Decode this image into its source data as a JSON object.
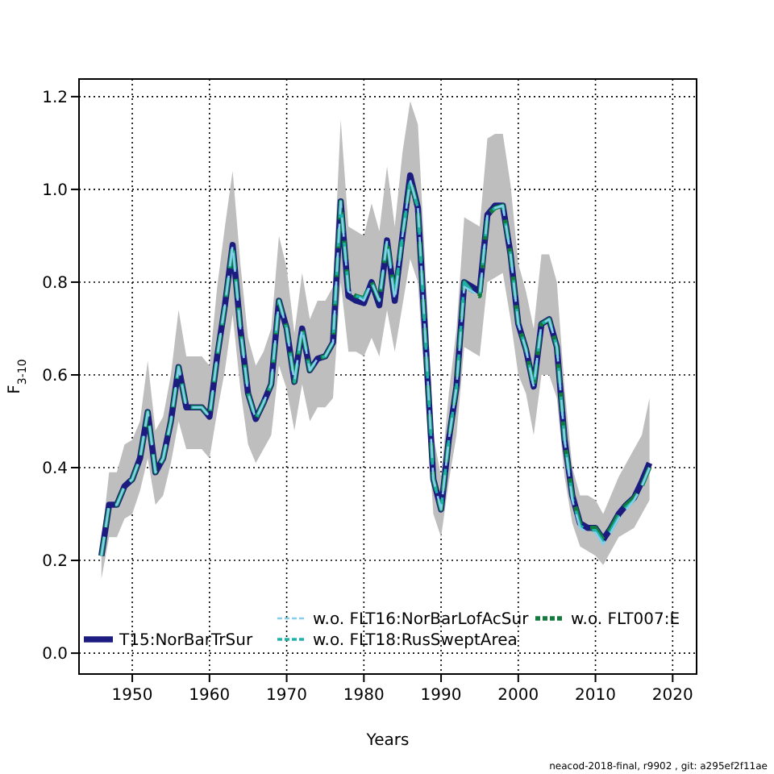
{
  "chart_data": {
    "type": "line",
    "xlabel": "Years",
    "ylabel": "F$_{3-10}$",
    "annotations": [
      "neacod-2018-final, r9902 , git: a295ef2f11ae"
    ],
    "x": [
      1946,
      1947,
      1948,
      1949,
      1950,
      1951,
      1952,
      1953,
      1954,
      1955,
      1956,
      1957,
      1958,
      1959,
      1960,
      1961,
      1962,
      1963,
      1964,
      1965,
      1966,
      1967,
      1968,
      1969,
      1970,
      1971,
      1972,
      1973,
      1974,
      1975,
      1976,
      1977,
      1978,
      1979,
      1980,
      1981,
      1982,
      1983,
      1984,
      1985,
      1986,
      1987,
      1988,
      1989,
      1990,
      1991,
      1992,
      1993,
      1994,
      1995,
      1996,
      1997,
      1998,
      1999,
      2000,
      2001,
      2002,
      2003,
      2004,
      2005,
      2006,
      2007,
      2008,
      2009,
      2010,
      2011,
      2012,
      2013,
      2014,
      2015,
      2016,
      2017
    ],
    "series": [
      {
        "name": "T15:NorBarTrSur",
        "color": "#1c1c80",
        "line_style": "solid",
        "values": [
          0.21,
          0.32,
          0.32,
          0.36,
          0.375,
          0.42,
          0.52,
          0.39,
          0.42,
          0.5,
          0.617,
          0.53,
          0.53,
          0.53,
          0.51,
          0.64,
          0.75,
          0.88,
          0.7,
          0.56,
          0.505,
          0.54,
          0.58,
          0.76,
          0.7,
          0.585,
          0.7,
          0.61,
          0.635,
          0.64,
          0.67,
          0.974,
          0.77,
          0.76,
          0.755,
          0.8,
          0.75,
          0.89,
          0.76,
          0.9,
          1.03,
          0.96,
          0.67,
          0.375,
          0.31,
          0.46,
          0.575,
          0.8,
          0.79,
          0.78,
          0.945,
          0.965,
          0.965,
          0.86,
          0.71,
          0.655,
          0.575,
          0.71,
          0.72,
          0.66,
          0.46,
          0.34,
          0.28,
          0.27,
          0.27,
          0.245,
          0.27,
          0.3,
          0.32,
          0.335,
          0.37,
          0.41
        ],
        "lower": [
          0.16,
          0.25,
          0.25,
          0.29,
          0.3,
          0.35,
          0.42,
          0.32,
          0.34,
          0.41,
          0.5,
          0.44,
          0.44,
          0.44,
          0.42,
          0.52,
          0.61,
          0.73,
          0.57,
          0.45,
          0.41,
          0.44,
          0.47,
          0.62,
          0.57,
          0.48,
          0.58,
          0.5,
          0.53,
          0.53,
          0.55,
          0.8,
          0.65,
          0.65,
          0.64,
          0.68,
          0.64,
          0.74,
          0.65,
          0.75,
          0.85,
          0.8,
          0.55,
          0.3,
          0.25,
          0.37,
          0.47,
          0.66,
          0.65,
          0.64,
          0.8,
          0.81,
          0.82,
          0.72,
          0.6,
          0.56,
          0.47,
          0.6,
          0.6,
          0.55,
          0.38,
          0.28,
          0.23,
          0.22,
          0.21,
          0.19,
          0.22,
          0.25,
          0.26,
          0.27,
          0.3,
          0.33
        ],
        "upper": [
          0.24,
          0.39,
          0.39,
          0.45,
          0.46,
          0.5,
          0.63,
          0.48,
          0.51,
          0.6,
          0.74,
          0.64,
          0.64,
          0.64,
          0.62,
          0.79,
          0.92,
          1.04,
          0.84,
          0.68,
          0.62,
          0.65,
          0.7,
          0.9,
          0.83,
          0.69,
          0.82,
          0.72,
          0.76,
          0.76,
          0.79,
          1.15,
          0.92,
          0.91,
          0.9,
          0.97,
          0.91,
          1.05,
          0.92,
          1.08,
          1.19,
          1.14,
          0.82,
          0.47,
          0.38,
          0.56,
          0.7,
          0.94,
          0.93,
          0.92,
          1.11,
          1.12,
          1.12,
          1.01,
          0.84,
          0.78,
          0.7,
          0.86,
          0.86,
          0.8,
          0.57,
          0.4,
          0.34,
          0.34,
          0.33,
          0.3,
          0.34,
          0.38,
          0.41,
          0.44,
          0.47,
          0.55
        ]
      },
      {
        "name": "w.o. FLT16:NorBarLofAcSur",
        "color": "#87ceeb",
        "line_style": "dashed",
        "values": [
          0.21,
          0.32,
          0.32,
          0.36,
          0.375,
          0.42,
          0.52,
          0.39,
          0.42,
          0.5,
          0.617,
          0.53,
          0.53,
          0.53,
          0.51,
          0.64,
          0.75,
          0.88,
          0.7,
          0.56,
          0.505,
          0.54,
          0.58,
          0.76,
          0.7,
          0.585,
          0.7,
          0.61,
          0.635,
          0.64,
          0.67,
          0.974,
          0.78,
          0.77,
          0.76,
          0.8,
          0.76,
          0.89,
          0.76,
          0.9,
          1.02,
          0.96,
          0.67,
          0.375,
          0.31,
          0.46,
          0.575,
          0.79,
          0.78,
          0.77,
          0.945,
          0.96,
          0.965,
          0.86,
          0.71,
          0.655,
          0.575,
          0.71,
          0.72,
          0.66,
          0.46,
          0.33,
          0.27,
          0.26,
          0.26,
          0.235,
          0.26,
          0.29,
          0.31,
          0.33,
          0.36,
          0.4
        ]
      },
      {
        "name": "w.o. FLT18:RusSweptArea",
        "color": "#20b2aa",
        "line_style": "dashed",
        "values": [
          0.21,
          0.32,
          0.32,
          0.36,
          0.375,
          0.42,
          0.52,
          0.39,
          0.42,
          0.5,
          0.617,
          0.53,
          0.53,
          0.53,
          0.51,
          0.64,
          0.75,
          0.88,
          0.7,
          0.56,
          0.505,
          0.54,
          0.58,
          0.76,
          0.7,
          0.585,
          0.7,
          0.61,
          0.635,
          0.64,
          0.67,
          0.974,
          0.78,
          0.77,
          0.765,
          0.8,
          0.76,
          0.89,
          0.77,
          0.9,
          1.02,
          0.96,
          0.67,
          0.375,
          0.31,
          0.46,
          0.575,
          0.8,
          0.78,
          0.77,
          0.945,
          0.96,
          0.965,
          0.86,
          0.71,
          0.655,
          0.575,
          0.71,
          0.72,
          0.66,
          0.46,
          0.335,
          0.275,
          0.265,
          0.265,
          0.24,
          0.265,
          0.295,
          0.315,
          0.33,
          0.36,
          0.4
        ]
      },
      {
        "name": "w.o. FLT007:E",
        "color": "#117a3c",
        "line_style": "dashed",
        "values": [
          0.21,
          0.32,
          0.32,
          0.36,
          0.375,
          0.42,
          0.52,
          0.39,
          0.42,
          0.5,
          0.617,
          0.53,
          0.53,
          0.53,
          0.51,
          0.64,
          0.75,
          0.88,
          0.7,
          0.56,
          0.505,
          0.54,
          0.58,
          0.76,
          0.7,
          0.585,
          0.7,
          0.61,
          0.635,
          0.64,
          0.67,
          0.974,
          0.78,
          0.77,
          0.765,
          0.8,
          0.76,
          0.89,
          0.77,
          0.9,
          1.02,
          0.96,
          0.67,
          0.375,
          0.31,
          0.46,
          0.575,
          0.8,
          0.78,
          0.77,
          0.945,
          0.96,
          0.965,
          0.86,
          0.71,
          0.655,
          0.575,
          0.71,
          0.72,
          0.66,
          0.46,
          0.34,
          0.28,
          0.27,
          0.27,
          0.245,
          0.27,
          0.3,
          0.32,
          0.335,
          0.36,
          0.4
        ]
      }
    ],
    "xlim": [
      1943.1,
      2023.1
    ],
    "xticks": [
      1950,
      1960,
      1970,
      1980,
      1990,
      2000,
      2010,
      2020
    ],
    "ylim": [
      -0.045,
      1.238
    ],
    "yticks": [
      {
        "value": 0,
        "label": "0.0"
      },
      {
        "value": 0.2,
        "label": "0.2"
      },
      {
        "value": 0.4,
        "label": "0.4"
      },
      {
        "value": 0.6,
        "label": "0.6"
      },
      {
        "value": 0.8,
        "label": "0.8"
      },
      {
        "value": 1,
        "label": "1.0"
      },
      {
        "value": 1.2,
        "label": "1.2"
      }
    ],
    "grid": true,
    "legend": "bottom",
    "marker": "none"
  }
}
